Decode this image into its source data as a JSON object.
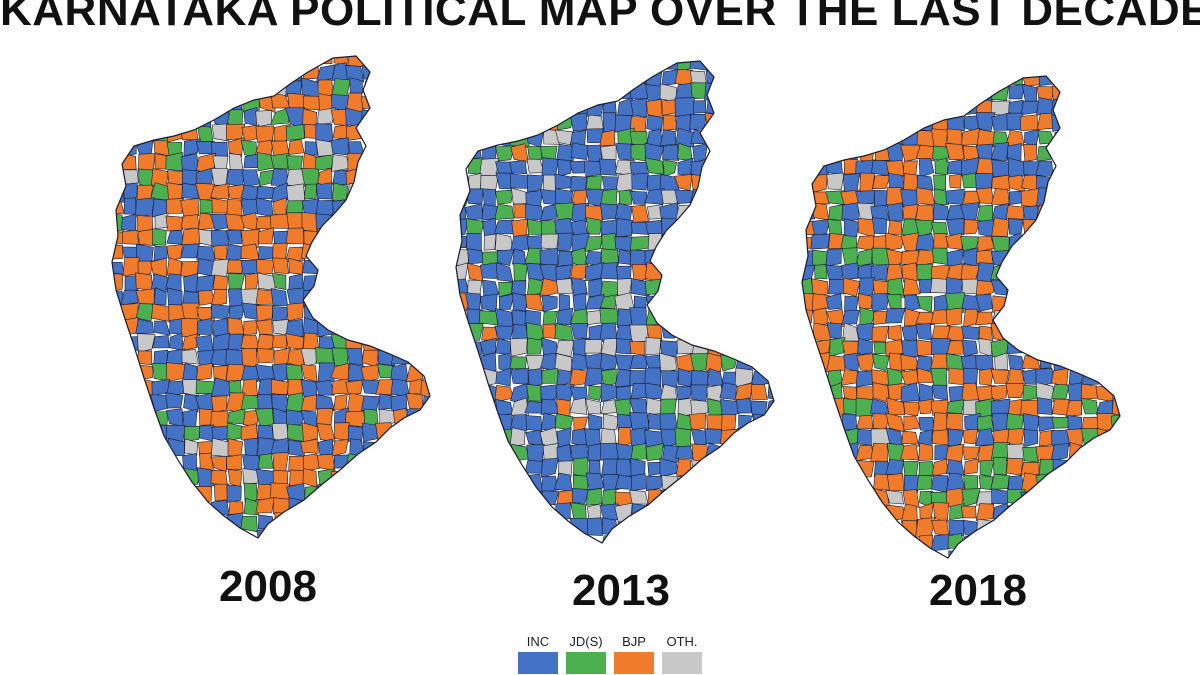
{
  "title": "KARNATAKA POLITICAL MAP OVER THE LAST DECADE",
  "colors": {
    "INC": "#4472c4",
    "JDS": "#4caf50",
    "BJP": "#f07b2b",
    "OTH": "#c8c8c8",
    "border": "#1a1a2e"
  },
  "maps": [
    {
      "year": "2008",
      "mix": {
        "INC": 0.34,
        "JDS": 0.12,
        "BJP": 0.49,
        "OTH": 0.05
      }
    },
    {
      "year": "2013",
      "mix": {
        "INC": 0.58,
        "JDS": 0.18,
        "BJP": 0.12,
        "OTH": 0.12
      }
    },
    {
      "year": "2018",
      "mix": {
        "INC": 0.36,
        "JDS": 0.17,
        "BJP": 0.44,
        "OTH": 0.03
      }
    }
  ],
  "legend": [
    {
      "key": "INC",
      "label": "INC"
    },
    {
      "key": "JDS",
      "label": "JD(S)"
    },
    {
      "key": "BJP",
      "label": "BJP"
    },
    {
      "key": "OTH",
      "label": "OTH."
    }
  ]
}
